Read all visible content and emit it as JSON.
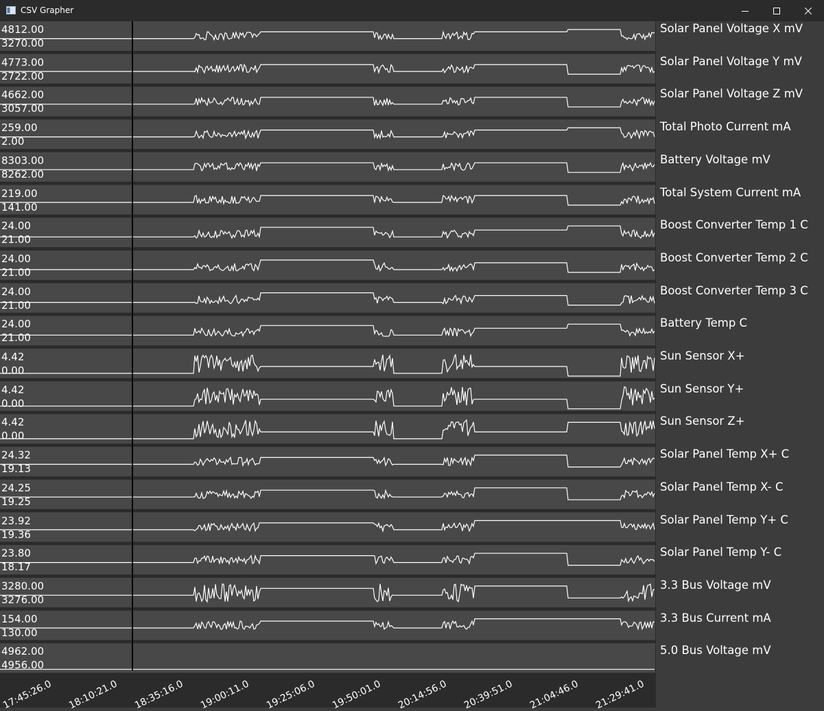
{
  "window": {
    "title": "CSV Grapher"
  },
  "icons": {
    "app": "chart-window-icon",
    "minimize": "minimize-icon",
    "maximize": "maximize-icon",
    "close": "close-icon"
  },
  "colors": {
    "background": "#3c3c3c",
    "plot_bg": "#484848",
    "line": "#ffffff",
    "titlebar": "#2b2b2b"
  },
  "chart_data": {
    "type": "line",
    "x_tick_labels": [
      "17:45:26.0",
      "18:10:21.0",
      "18:35:16.0",
      "19:00:11.0",
      "19:25:06.0",
      "19:50:01.0",
      "20:14:56.0",
      "20:39:51.0",
      "21:04:46.0",
      "21:29:41.0"
    ],
    "cursor_time": "18:35:16.0",
    "series": [
      {
        "name": "Solar Panel Voltage X mV",
        "max": "4812.00",
        "min": "3270.00"
      },
      {
        "name": "Solar Panel Voltage Y mV",
        "max": "4773.00",
        "min": "2722.00"
      },
      {
        "name": "Solar Panel Voltage Z mV",
        "max": "4662.00",
        "min": "3057.00"
      },
      {
        "name": "Total Photo Current mA",
        "max": "259.00",
        "min": "2.00"
      },
      {
        "name": "Battery Voltage mV",
        "max": "8303.00",
        "min": "8262.00"
      },
      {
        "name": "Total System Current mA",
        "max": "219.00",
        "min": "141.00"
      },
      {
        "name": "Boost Converter Temp 1 C",
        "max": "24.00",
        "min": "21.00"
      },
      {
        "name": "Boost Converter Temp 2 C",
        "max": "24.00",
        "min": "21.00"
      },
      {
        "name": "Boost Converter Temp 3 C",
        "max": "24.00",
        "min": "21.00"
      },
      {
        "name": "Battery Temp C",
        "max": "24.00",
        "min": "21.00"
      },
      {
        "name": "Sun Sensor X+",
        "max": "4.42",
        "min": "0.00"
      },
      {
        "name": "Sun Sensor Y+",
        "max": "4.42",
        "min": "0.00"
      },
      {
        "name": "Sun Sensor Z+",
        "max": "4.42",
        "min": "0.00"
      },
      {
        "name": "Solar Panel Temp X+ C",
        "max": "24.32",
        "min": "19.13"
      },
      {
        "name": "Solar Panel Temp X- C",
        "max": "24.25",
        "min": "19.25"
      },
      {
        "name": "Solar Panel Temp Y+ C",
        "max": "23.92",
        "min": "19.36"
      },
      {
        "name": "Solar Panel Temp Y- C",
        "max": "23.80",
        "min": "18.17"
      },
      {
        "name": "3.3 Bus Voltage mV",
        "max": "3280.00",
        "min": "3276.00"
      },
      {
        "name": "3.3 Bus Current mA",
        "max": "154.00",
        "min": "130.00"
      },
      {
        "name": "5.0 Bus Voltage mV",
        "max": "4962.00",
        "min": "4956.00"
      }
    ]
  }
}
